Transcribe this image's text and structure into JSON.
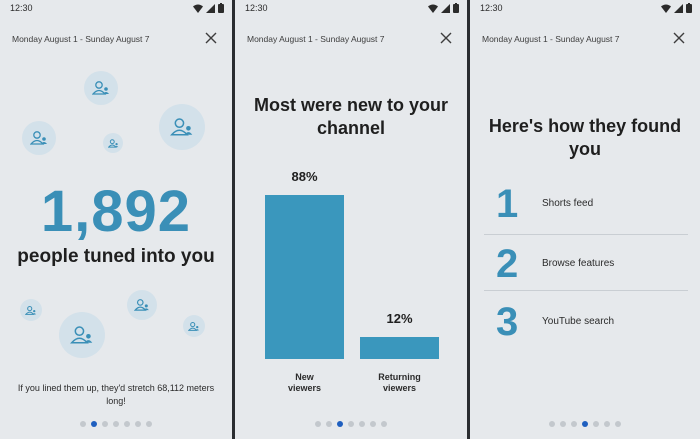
{
  "status_bar": {
    "time": "12:30"
  },
  "header": {
    "date_range": "Monday August 1 - Sunday August 7"
  },
  "screen1": {
    "viewer_count": "1,892",
    "headline": "people tuned into you",
    "footnote": "If you lined them up, they'd stretch 68,112 meters long!",
    "pagination": {
      "count": 7,
      "active": 1
    }
  },
  "screen2": {
    "title": "Most were new to your channel",
    "chart_data": {
      "type": "bar",
      "categories": [
        "New viewers",
        "Returning viewers"
      ],
      "values": [
        88,
        12
      ],
      "value_labels": [
        "88%",
        "12%"
      ],
      "category_lines": [
        [
          "New",
          "viewers"
        ],
        [
          "Returning",
          "viewers"
        ]
      ],
      "ylim": [
        0,
        100
      ],
      "color": "#3a97bd"
    },
    "pagination": {
      "count": 7,
      "active": 2
    }
  },
  "screen3": {
    "title": "Here's how they found you",
    "sources": [
      {
        "rank": "1",
        "label": "Shorts feed"
      },
      {
        "rank": "2",
        "label": "Browse features"
      },
      {
        "rank": "3",
        "label": "YouTube search"
      }
    ],
    "pagination": {
      "count": 7,
      "active": 3
    }
  },
  "colors": {
    "accent": "#3a8fb7",
    "bar": "#3a97bd",
    "background": "#e6e9ec",
    "active_dot": "#1f5fbf"
  },
  "icons": [
    "signal-icon",
    "wifi-icon",
    "battery-icon",
    "close-icon",
    "person-icon"
  ]
}
